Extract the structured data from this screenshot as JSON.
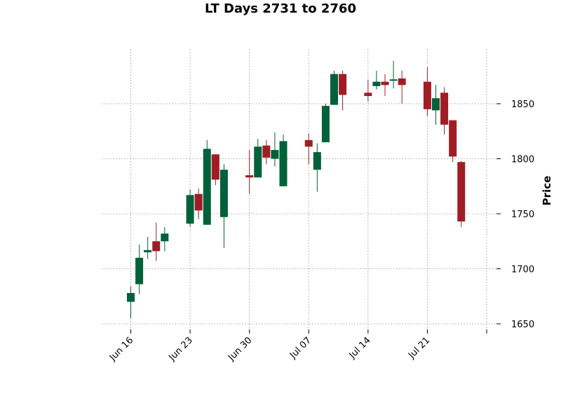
{
  "chart_data": {
    "type": "candlestick",
    "title": "LT Days 2731 to 2760",
    "ylabel": "Price",
    "xlabel": "",
    "ylim": [
      1645,
      1895
    ],
    "grid": true,
    "y_ticks": [
      1650,
      1700,
      1750,
      1800,
      1850
    ],
    "x_tick_labels": [
      "Jun 16",
      "Jun 23",
      "Jun 30",
      "Jul 07",
      "Jul 14",
      "Jul 21",
      ""
    ],
    "x_tick_dates": [
      "2024-06-16",
      "2024-06-23",
      "2024-06-30",
      "2024-07-07",
      "2024-07-14",
      "2024-07-21",
      "2024-07-28"
    ],
    "up_color": "#00613a",
    "down_color": "#a01d26",
    "candles": [
      {
        "date": "2024-06-16",
        "open": 1670,
        "high": 1684,
        "low": 1655,
        "close": 1678
      },
      {
        "date": "2024-06-17",
        "open": 1686,
        "high": 1722,
        "low": 1677,
        "close": 1710
      },
      {
        "date": "2024-06-18",
        "open": 1715,
        "high": 1729,
        "low": 1709,
        "close": 1717
      },
      {
        "date": "2024-06-19",
        "open": 1725,
        "high": 1742,
        "low": 1707,
        "close": 1716
      },
      {
        "date": "2024-06-20",
        "open": 1725,
        "high": 1738,
        "low": 1716,
        "close": 1732
      },
      {
        "date": "2024-06-23",
        "open": 1741,
        "high": 1772,
        "low": 1738,
        "close": 1767
      },
      {
        "date": "2024-06-24",
        "open": 1768,
        "high": 1773,
        "low": 1745,
        "close": 1753
      },
      {
        "date": "2024-06-25",
        "open": 1740,
        "high": 1817,
        "low": 1740,
        "close": 1809
      },
      {
        "date": "2024-06-26",
        "open": 1804,
        "high": 1804,
        "low": 1776,
        "close": 1781
      },
      {
        "date": "2024-06-27",
        "open": 1747,
        "high": 1795,
        "low": 1719,
        "close": 1790
      },
      {
        "date": "2024-06-30",
        "open": 1785,
        "high": 1808,
        "low": 1768,
        "close": 1783
      },
      {
        "date": "2024-07-01",
        "open": 1783,
        "high": 1818,
        "low": 1783,
        "close": 1811
      },
      {
        "date": "2024-07-02",
        "open": 1812,
        "high": 1817,
        "low": 1795,
        "close": 1801
      },
      {
        "date": "2024-07-03",
        "open": 1800,
        "high": 1824,
        "low": 1793,
        "close": 1808
      },
      {
        "date": "2024-07-04",
        "open": 1775,
        "high": 1822,
        "low": 1775,
        "close": 1816
      },
      {
        "date": "2024-07-07",
        "open": 1817,
        "high": 1823,
        "low": 1795,
        "close": 1811
      },
      {
        "date": "2024-07-08",
        "open": 1790,
        "high": 1814,
        "low": 1770,
        "close": 1806
      },
      {
        "date": "2024-07-09",
        "open": 1815,
        "high": 1850,
        "low": 1815,
        "close": 1848
      },
      {
        "date": "2024-07-10",
        "open": 1849,
        "high": 1880,
        "low": 1849,
        "close": 1877
      },
      {
        "date": "2024-07-11",
        "open": 1877,
        "high": 1880,
        "low": 1844,
        "close": 1858
      },
      {
        "date": "2024-07-14",
        "open": 1860,
        "high": 1872,
        "low": 1852,
        "close": 1857
      },
      {
        "date": "2024-07-15",
        "open": 1866,
        "high": 1880,
        "low": 1863,
        "close": 1870
      },
      {
        "date": "2024-07-16",
        "open": 1870,
        "high": 1877,
        "low": 1857,
        "close": 1867
      },
      {
        "date": "2024-07-17",
        "open": 1871,
        "high": 1889,
        "low": 1864,
        "close": 1872
      },
      {
        "date": "2024-07-18",
        "open": 1873,
        "high": 1880,
        "low": 1850,
        "close": 1867
      },
      {
        "date": "2024-07-21",
        "open": 1870,
        "high": 1883,
        "low": 1839,
        "close": 1845
      },
      {
        "date": "2024-07-22",
        "open": 1844,
        "high": 1867,
        "low": 1831,
        "close": 1855
      },
      {
        "date": "2024-07-23",
        "open": 1860,
        "high": 1865,
        "low": 1822,
        "close": 1831
      },
      {
        "date": "2024-07-24",
        "open": 1835,
        "high": 1835,
        "low": 1797,
        "close": 1802
      },
      {
        "date": "2024-07-25",
        "open": 1797,
        "high": 1798,
        "low": 1738,
        "close": 1743
      }
    ]
  }
}
